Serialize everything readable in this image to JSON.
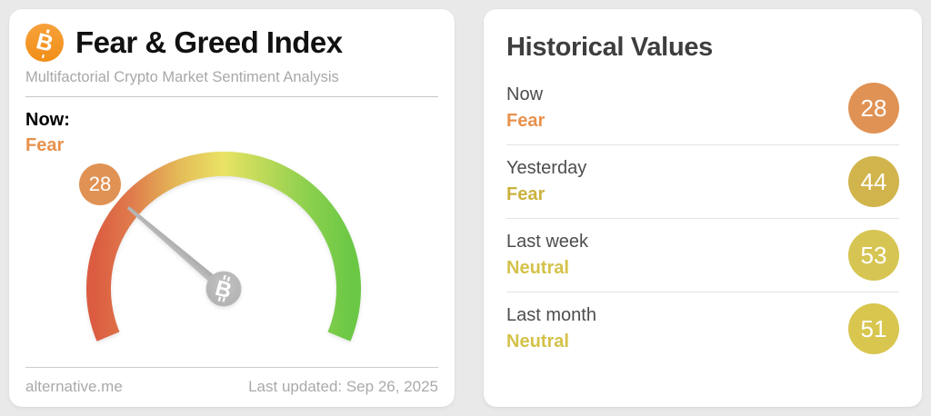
{
  "chart_data": {
    "type": "gauge",
    "title": "Fear & Greed Index",
    "subtitle": "Multifactorial Crypto Market Sentiment Analysis",
    "value": 28,
    "classification": "Fear",
    "range": [
      0,
      100
    ],
    "arc_span_degrees": 225,
    "scale_gradient": [
      "#db5c41",
      "#e07b4c",
      "#e4bc58",
      "#e9e365",
      "#c1da59",
      "#8bd04e",
      "#6bc845"
    ],
    "historical": [
      {
        "label": "Now",
        "value": 28,
        "classification": "Fear"
      },
      {
        "label": "Yesterday",
        "value": 44,
        "classification": "Fear"
      },
      {
        "label": "Last week",
        "value": 53,
        "classification": "Neutral"
      },
      {
        "label": "Last month",
        "value": 51,
        "classification": "Neutral"
      }
    ],
    "source": "alternative.me",
    "last_updated": "Last updated: Sep 26, 2025"
  },
  "icons": {
    "bitcoin_glyph": "B"
  },
  "gauge_card": {
    "title": "Fear & Greed Index",
    "subtitle": "Multifactorial Crypto Market Sentiment Analysis",
    "now_label": "Now:",
    "now_value_text": "Fear",
    "now_value_color": "#e8914c",
    "badge_value": "28",
    "badge_color": "#e09254",
    "footer_source": "alternative.me",
    "footer_updated": "Last updated: Sep 26, 2025"
  },
  "historical_card": {
    "title": "Historical Values",
    "rows": [
      {
        "label": "Now",
        "classification": "Fear",
        "value": "28",
        "badge_color": "#e09254",
        "classification_color": "#e8914c"
      },
      {
        "label": "Yesterday",
        "classification": "Fear",
        "value": "44",
        "badge_color": "#d1b44b",
        "classification_color": "#cbb23f"
      },
      {
        "label": "Last week",
        "classification": "Neutral",
        "value": "53",
        "badge_color": "#d7c553",
        "classification_color": "#d4c24a"
      },
      {
        "label": "Last month",
        "classification": "Neutral",
        "value": "51",
        "badge_color": "#d8c64f",
        "classification_color": "#d4c24a"
      }
    ]
  }
}
